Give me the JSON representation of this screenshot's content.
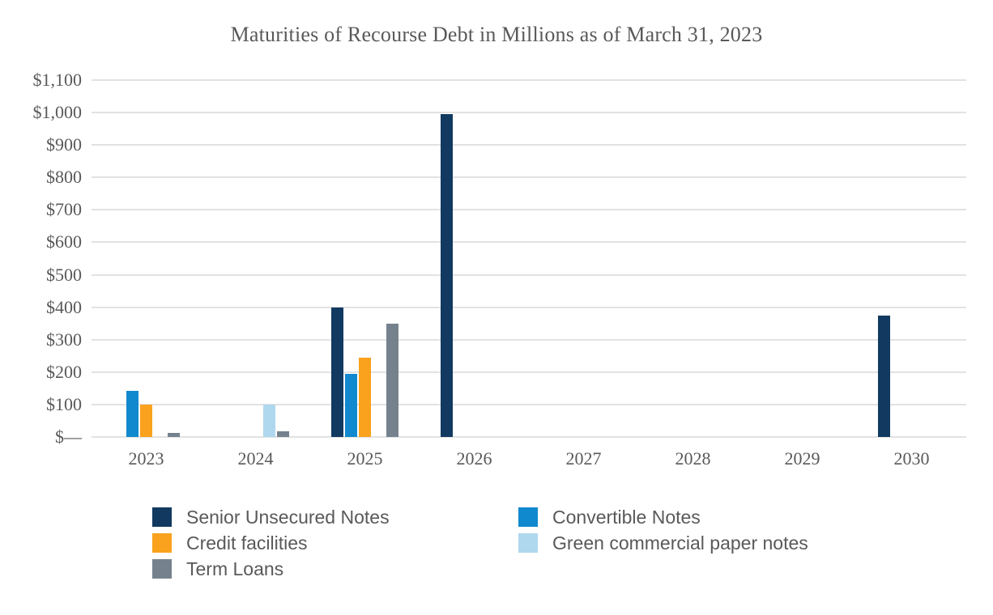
{
  "chart_title": "Maturities of Recourse Debt in Millions as of March 31, 2023",
  "chart_data": {
    "type": "bar",
    "title": "Maturities of Recourse Debt in Millions as of March 31, 2023",
    "categories": [
      "2023",
      "2024",
      "2025",
      "2026",
      "2027",
      "2028",
      "2029",
      "2030"
    ],
    "series": [
      {
        "name": "Senior Unsecured Notes",
        "color": "#123a60",
        "values": [
          0,
          0,
          398,
          995,
          0,
          0,
          0,
          375
        ]
      },
      {
        "name": "Convertible Notes",
        "color": "#1189ce",
        "values": [
          143,
          0,
          195,
          0,
          0,
          0,
          0,
          0
        ]
      },
      {
        "name": "Credit facilities",
        "color": "#faa21d",
        "values": [
          100,
          0,
          245,
          0,
          0,
          0,
          0,
          0
        ]
      },
      {
        "name": "Green commercial paper notes",
        "color": "#afd8ee",
        "values": [
          0,
          100,
          0,
          0,
          0,
          0,
          0,
          0
        ]
      },
      {
        "name": "Term Loans",
        "color": "#75828e",
        "values": [
          13,
          18,
          350,
          0,
          0,
          0,
          0,
          0
        ]
      }
    ],
    "xlabel": "",
    "ylabel": "",
    "ylim": [
      0,
      1100
    ],
    "ytick_step": 100,
    "ytick_labels": [
      "$—",
      "$100",
      "$200",
      "$300",
      "$400",
      "$500",
      "$600",
      "$700",
      "$800",
      "$900",
      "$1,000",
      "$1,100"
    ],
    "grid": true,
    "gridline_color": "#e2e2e2",
    "text_color": "#595959",
    "legend_position": "bottom",
    "legend_columns": [
      [
        0,
        2,
        4
      ],
      [
        1,
        3
      ]
    ]
  }
}
